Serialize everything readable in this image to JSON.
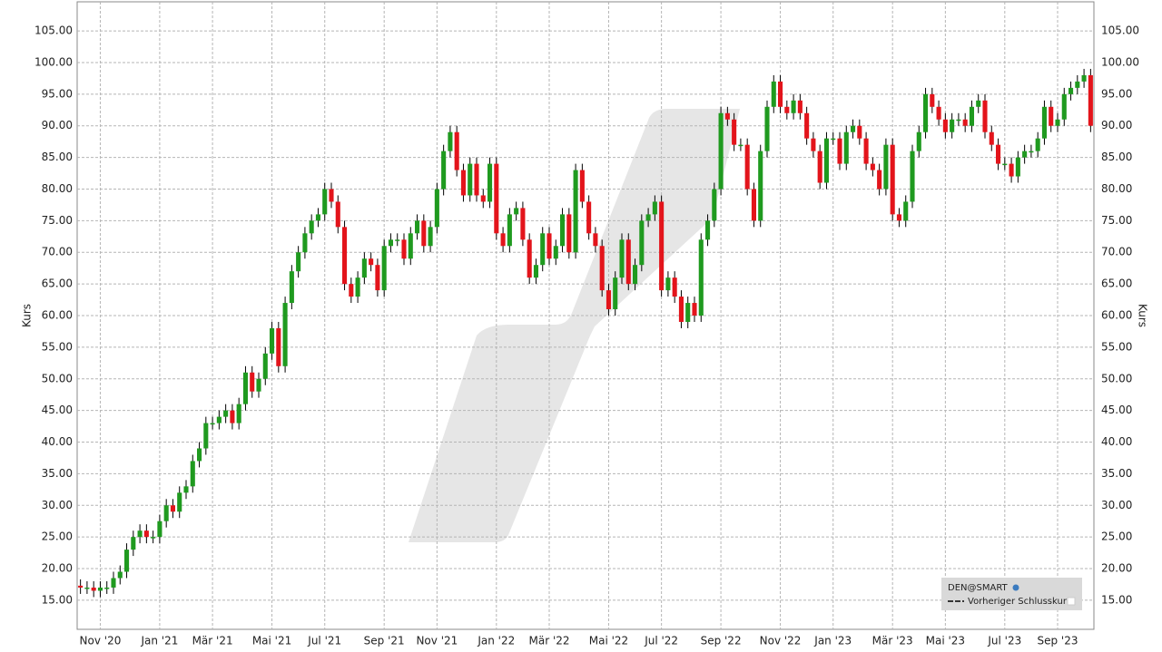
{
  "chart_data": {
    "type": "candlestick",
    "y_label": "Kurs",
    "y2_label": "Kurs",
    "legend": {
      "source": "DEN@SMART",
      "line_label": "Vorheriger Schlusskurs",
      "position": "lower right"
    },
    "up_color": "#1f9a1f",
    "down_color": "#e3141b",
    "wick_color": "#000000",
    "grid": true,
    "ylim": [
      10.4,
      109.6
    ],
    "yticks": [
      {
        "value": 15,
        "label": "15.00"
      },
      {
        "value": 20,
        "label": "20.00"
      },
      {
        "value": 25,
        "label": "25.00"
      },
      {
        "value": 30,
        "label": "30.00"
      },
      {
        "value": 35,
        "label": "35.00"
      },
      {
        "value": 40,
        "label": "40.00"
      },
      {
        "value": 45,
        "label": "45.00"
      },
      {
        "value": 50,
        "label": "50.00"
      },
      {
        "value": 55,
        "label": "55.00"
      },
      {
        "value": 60,
        "label": "60.00"
      },
      {
        "value": 65,
        "label": "65.00"
      },
      {
        "value": 70,
        "label": "70.00"
      },
      {
        "value": 75,
        "label": "75.00"
      },
      {
        "value": 80,
        "label": "80.00"
      },
      {
        "value": 85,
        "label": "85.00"
      },
      {
        "value": 90,
        "label": "90.00"
      },
      {
        "value": 95,
        "label": "95.00"
      },
      {
        "value": 100,
        "label": "100.00"
      },
      {
        "value": 105,
        "label": "105.00"
      }
    ],
    "categories": [
      null,
      null,
      null,
      "Nov '20",
      null,
      null,
      null,
      null,
      null,
      null,
      null,
      null,
      "Jan '21",
      null,
      null,
      null,
      null,
      null,
      null,
      null,
      "Mär '21",
      null,
      null,
      null,
      null,
      null,
      null,
      null,
      null,
      "Mai '21",
      null,
      null,
      null,
      null,
      null,
      null,
      null,
      "Jul '21",
      null,
      null,
      null,
      null,
      null,
      null,
      null,
      null,
      "Sep '21",
      null,
      null,
      null,
      null,
      null,
      null,
      null,
      "Nov '21",
      null,
      null,
      null,
      null,
      null,
      null,
      null,
      null,
      "Jan '22",
      null,
      null,
      null,
      null,
      null,
      null,
      null,
      "Mär '22",
      null,
      null,
      null,
      null,
      null,
      null,
      null,
      null,
      "Mai '22",
      null,
      null,
      null,
      null,
      null,
      null,
      null,
      "Jul '22",
      null,
      null,
      null,
      null,
      null,
      null,
      null,
      null,
      "Sep '22",
      null,
      null,
      null,
      null,
      null,
      null,
      null,
      null,
      "Nov '22",
      null,
      null,
      null,
      null,
      null,
      null,
      null,
      "Jan '23",
      null,
      null,
      null,
      null,
      null,
      null,
      null,
      null,
      "Mär '23",
      null,
      null,
      null,
      null,
      null,
      null,
      null,
      "Mai '23",
      null,
      null,
      null,
      null,
      null,
      null,
      null,
      null,
      "Jul '23",
      null,
      null,
      null,
      null,
      null,
      null,
      null,
      "Sep '23",
      null,
      null,
      null,
      null,
      null
    ],
    "open": [
      17.3,
      17,
      17,
      16.5,
      17,
      17,
      18.5,
      19.5,
      23,
      25,
      26,
      25,
      25,
      27.5,
      30,
      29,
      32,
      33,
      37,
      39,
      43,
      43,
      44,
      45,
      43,
      46,
      51,
      48,
      50,
      54,
      58,
      52,
      62,
      67,
      70,
      73,
      75,
      76,
      80,
      78,
      74,
      65,
      63,
      66,
      69,
      68,
      64,
      71,
      72,
      72,
      69,
      73,
      75,
      71,
      74,
      80,
      86,
      89,
      83,
      79,
      84,
      79,
      78,
      84,
      73,
      71,
      76,
      77,
      72,
      66,
      68,
      73,
      69,
      71,
      76,
      70,
      83,
      78,
      73,
      71,
      64,
      61,
      66,
      72,
      65,
      68,
      75,
      76,
      78,
      64,
      66,
      63,
      59,
      62,
      60,
      72,
      75,
      80,
      92,
      91,
      87,
      87,
      80,
      75,
      86,
      93,
      97,
      93,
      92,
      94,
      92,
      88,
      86,
      81,
      88,
      88,
      84,
      89,
      90,
      88,
      84,
      83,
      80,
      87,
      76,
      75,
      78,
      86,
      89,
      95,
      93,
      91,
      89,
      91,
      91,
      90,
      93,
      94,
      89,
      87,
      84,
      84,
      82,
      85,
      86,
      86,
      88,
      93,
      90,
      91,
      95,
      96,
      97,
      98
    ],
    "high": [
      18.3,
      18,
      18,
      18,
      18,
      19.5,
      20.5,
      24,
      26,
      27,
      27,
      26,
      28.5,
      31,
      31,
      33,
      34,
      38,
      40,
      44,
      44,
      45,
      46,
      46,
      47,
      52,
      52,
      51,
      55,
      59,
      59,
      63,
      68,
      71,
      74,
      76,
      77,
      81,
      81,
      79,
      75,
      66,
      67,
      70,
      70,
      69,
      72,
      73,
      73,
      73,
      74,
      76,
      76,
      75,
      81,
      87,
      90,
      90,
      84,
      85,
      85,
      80,
      85,
      85,
      74,
      77,
      78,
      78,
      73,
      69,
      74,
      74,
      72,
      77,
      77,
      84,
      84,
      79,
      74,
      72,
      65,
      67,
      73,
      73,
      69,
      76,
      77,
      79,
      79,
      67,
      67,
      64,
      63,
      63,
      73,
      76,
      81,
      93,
      93,
      92,
      88,
      88,
      81,
      87,
      94,
      98,
      98,
      94,
      95,
      95,
      93,
      89,
      87,
      89,
      89,
      89,
      90,
      91,
      91,
      89,
      85,
      84,
      88,
      88,
      77,
      79,
      87,
      90,
      96,
      96,
      94,
      92,
      92,
      92,
      92,
      94,
      95,
      95,
      90,
      88,
      85,
      85,
      86,
      87,
      87,
      89,
      94,
      94,
      92,
      96,
      97,
      98,
      99,
      99
    ],
    "low": [
      16,
      16,
      15.5,
      15.5,
      16,
      16,
      17.5,
      18.5,
      22,
      24,
      24,
      24,
      24,
      26.5,
      28,
      28,
      31,
      32,
      36,
      38,
      42,
      42,
      43,
      42,
      42,
      45,
      47,
      47,
      49,
      53,
      51,
      51,
      61,
      66,
      69,
      72,
      74,
      75,
      77,
      73,
      64,
      62,
      62,
      65,
      67,
      63,
      63,
      70,
      71,
      68,
      68,
      72,
      70,
      70,
      73,
      79,
      85,
      82,
      78,
      78,
      78,
      77,
      77,
      72,
      70,
      70,
      75,
      71,
      65,
      65,
      67,
      68,
      68,
      70,
      69,
      69,
      77,
      72,
      70,
      63,
      60,
      60,
      65,
      64,
      64,
      67,
      74,
      75,
      63,
      63,
      62,
      58,
      58,
      59,
      59,
      71,
      74,
      79,
      90,
      86,
      86,
      79,
      74,
      74,
      85,
      92,
      92,
      91,
      91,
      91,
      87,
      85,
      80,
      80,
      87,
      83,
      83,
      88,
      87,
      83,
      82,
      79,
      79,
      75,
      74,
      74,
      77,
      85,
      88,
      92,
      90,
      88,
      88,
      90,
      89,
      89,
      92,
      88,
      86,
      83,
      83,
      81,
      81,
      84,
      85,
      85,
      87,
      89,
      89,
      90,
      94,
      95,
      96,
      89
    ],
    "close": [
      17,
      17,
      16.5,
      17,
      17,
      18.5,
      19.5,
      23,
      25,
      26,
      25,
      25,
      27.5,
      30,
      29,
      32,
      33,
      37,
      39,
      43,
      43,
      44,
      45,
      43,
      46,
      51,
      48,
      50,
      54,
      58,
      52,
      62,
      67,
      70,
      73,
      75,
      76,
      80,
      78,
      74,
      65,
      63,
      66,
      69,
      68,
      64,
      71,
      72,
      72,
      69,
      73,
      75,
      71,
      74,
      80,
      86,
      89,
      83,
      79,
      84,
      79,
      78,
      84,
      73,
      71,
      76,
      77,
      72,
      66,
      68,
      73,
      69,
      71,
      76,
      70,
      83,
      78,
      73,
      71,
      64,
      61,
      66,
      72,
      65,
      68,
      75,
      76,
      78,
      64,
      66,
      63,
      59,
      62,
      60,
      72,
      75,
      80,
      92,
      91,
      87,
      87,
      80,
      75,
      86,
      93,
      97,
      93,
      92,
      94,
      92,
      88,
      86,
      81,
      88,
      88,
      84,
      89,
      90,
      88,
      84,
      83,
      80,
      87,
      76,
      75,
      78,
      86,
      89,
      95,
      93,
      91,
      89,
      91,
      91,
      90,
      93,
      94,
      89,
      87,
      84,
      84,
      82,
      85,
      86,
      86,
      88,
      93,
      90,
      91,
      95,
      96,
      97,
      98,
      90
    ]
  }
}
